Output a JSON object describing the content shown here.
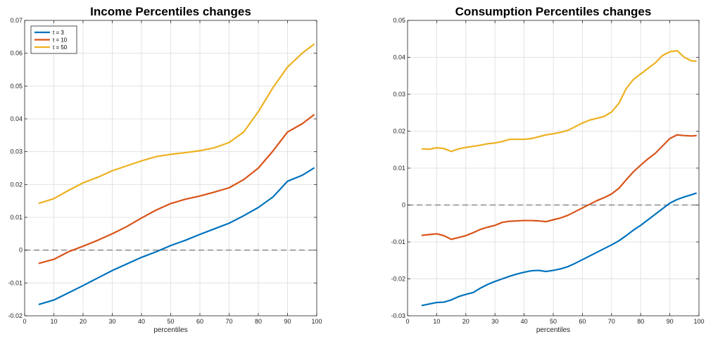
{
  "chart_data": [
    {
      "type": "line",
      "title": "Income Percentiles changes",
      "xlabel": "percentiles",
      "ylabel": "",
      "xlim": [
        0,
        100
      ],
      "ylim": [
        -0.02,
        0.07
      ],
      "xticks": [
        "0",
        "10",
        "20",
        "30",
        "40",
        "50",
        "60",
        "70",
        "80",
        "90",
        "100"
      ],
      "yticks": [
        "-0.02",
        "-0.01",
        "0",
        "0.01",
        "0.02",
        "0.03",
        "0.04",
        "0.05",
        "0.06",
        "0.07"
      ],
      "grid": true,
      "legend": "top-left",
      "reference_line": 0,
      "series": [
        {
          "name": "t = 3",
          "color": "#0072BD",
          "x": [
            5,
            10,
            15,
            20,
            25,
            30,
            35,
            40,
            45,
            50,
            55,
            60,
            65,
            70,
            75,
            80,
            85,
            90,
            95,
            99
          ],
          "y": [
            -0.0165,
            -0.0152,
            -0.013,
            -0.0108,
            -0.0085,
            -0.0062,
            -0.0042,
            -0.0022,
            -0.0005,
            0.0014,
            0.003,
            0.0048,
            0.0065,
            0.0082,
            0.0105,
            0.013,
            0.0162,
            0.021,
            0.0228,
            0.025
          ]
        },
        {
          "name": "t = 10",
          "color": "#D95319",
          "x": [
            5,
            10,
            15,
            20,
            25,
            30,
            35,
            40,
            45,
            50,
            55,
            60,
            65,
            70,
            75,
            80,
            85,
            90,
            95,
            99
          ],
          "y": [
            -0.004,
            -0.0028,
            -0.0005,
            0.0012,
            0.003,
            0.005,
            0.0072,
            0.0098,
            0.0122,
            0.0142,
            0.0155,
            0.0165,
            0.0177,
            0.019,
            0.0215,
            0.025,
            0.0302,
            0.036,
            0.0385,
            0.0412
          ]
        },
        {
          "name": "t = 50",
          "color": "#EDB120",
          "x": [
            5,
            10,
            15,
            20,
            25,
            30,
            35,
            40,
            45,
            50,
            55,
            60,
            65,
            70,
            75,
            80,
            85,
            90,
            95,
            99
          ],
          "y": [
            0.0143,
            0.0157,
            0.0182,
            0.0205,
            0.0222,
            0.0242,
            0.0257,
            0.0272,
            0.0285,
            0.0292,
            0.0297,
            0.0303,
            0.0312,
            0.0328,
            0.036,
            0.0422,
            0.0495,
            0.0558,
            0.06,
            0.0627
          ]
        }
      ]
    },
    {
      "type": "line",
      "title": "Consumption Percentiles changes",
      "xlabel": "percentiles",
      "ylabel": "",
      "xlim": [
        0,
        100
      ],
      "ylim": [
        -0.03,
        0.05
      ],
      "xticks": [
        "0",
        "10",
        "20",
        "30",
        "40",
        "50",
        "60",
        "70",
        "80",
        "90",
        "100"
      ],
      "yticks": [
        "-0.03",
        "-0.02",
        "-0.01",
        "0",
        "0.01",
        "0.02",
        "0.03",
        "0.04",
        "0.05"
      ],
      "grid": true,
      "legend": "none",
      "reference_line": 0,
      "series": [
        {
          "name": "t = 3",
          "color": "#0072BD",
          "x": [
            5,
            7.5,
            10,
            12.5,
            15,
            17.5,
            20,
            22.5,
            25,
            27.5,
            30,
            32.5,
            35,
            37.5,
            40,
            42.5,
            45,
            47.5,
            50,
            52.5,
            55,
            57.5,
            60,
            62.5,
            65,
            67.5,
            70,
            72.5,
            75,
            77.5,
            80,
            82.5,
            85,
            87.5,
            90,
            92.5,
            95,
            97.5,
            99
          ],
          "y": [
            -0.0272,
            -0.0268,
            -0.0264,
            -0.0263,
            -0.0257,
            -0.0248,
            -0.0242,
            -0.0237,
            -0.0225,
            -0.0215,
            -0.0207,
            -0.02,
            -0.0193,
            -0.0187,
            -0.0182,
            -0.0178,
            -0.0177,
            -0.018,
            -0.0177,
            -0.0173,
            -0.0167,
            -0.0158,
            -0.0148,
            -0.0138,
            -0.0128,
            -0.0118,
            -0.0108,
            -0.0097,
            -0.0083,
            -0.0068,
            -0.0055,
            -0.004,
            -0.0025,
            -0.001,
            0.0005,
            0.0015,
            0.0022,
            0.0028,
            0.0032
          ]
        },
        {
          "name": "t = 10",
          "color": "#D95319",
          "x": [
            5,
            7.5,
            10,
            12.5,
            15,
            17.5,
            20,
            22.5,
            25,
            27.5,
            30,
            32.5,
            35,
            37.5,
            40,
            42.5,
            45,
            47.5,
            50,
            52.5,
            55,
            57.5,
            60,
            62.5,
            65,
            67.5,
            70,
            72.5,
            75,
            77.5,
            80,
            82.5,
            85,
            87.5,
            90,
            92.5,
            95,
            97.5,
            99
          ],
          "y": [
            -0.0082,
            -0.008,
            -0.0078,
            -0.0083,
            -0.0093,
            -0.0088,
            -0.0083,
            -0.0075,
            -0.0066,
            -0.006,
            -0.0055,
            -0.0047,
            -0.0044,
            -0.0043,
            -0.0042,
            -0.0042,
            -0.0043,
            -0.0045,
            -0.004,
            -0.0035,
            -0.0028,
            -0.0018,
            -0.0008,
            0.0002,
            0.0012,
            0.002,
            0.003,
            0.0045,
            0.0068,
            0.009,
            0.0108,
            0.0125,
            0.014,
            0.016,
            0.018,
            0.019,
            0.0188,
            0.0187,
            0.0188
          ]
        },
        {
          "name": "t = 50",
          "color": "#EDB120",
          "x": [
            5,
            7.5,
            10,
            12.5,
            15,
            17.5,
            20,
            22.5,
            25,
            27.5,
            30,
            32.5,
            35,
            37.5,
            40,
            42.5,
            45,
            47.5,
            50,
            52.5,
            55,
            57.5,
            60,
            62.5,
            65,
            67.5,
            70,
            72.5,
            75,
            77.5,
            80,
            82.5,
            85,
            87.5,
            90,
            92.5,
            95,
            97.5,
            99
          ],
          "y": [
            0.0152,
            0.0151,
            0.0155,
            0.0153,
            0.0145,
            0.0152,
            0.0156,
            0.0159,
            0.0162,
            0.0166,
            0.0168,
            0.0172,
            0.0178,
            0.0178,
            0.0178,
            0.018,
            0.0185,
            0.019,
            0.0193,
            0.0197,
            0.0202,
            0.0212,
            0.0222,
            0.023,
            0.0235,
            0.024,
            0.0252,
            0.0275,
            0.0315,
            0.034,
            0.0355,
            0.037,
            0.0385,
            0.0405,
            0.0415,
            0.0418,
            0.04,
            0.039,
            0.039
          ]
        }
      ]
    }
  ]
}
